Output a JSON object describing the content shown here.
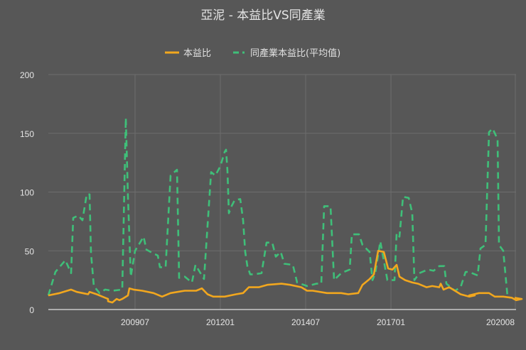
{
  "chart_data": {
    "type": "line",
    "title": "亞泥 - 本益比VS同產業",
    "xlabel": "",
    "ylabel": "",
    "ylim": [
      0,
      200
    ],
    "yticks": [
      0,
      50,
      100,
      150,
      200
    ],
    "grid": true,
    "legend_position": "top",
    "x_start_month": "200701",
    "x_tick_labels": [
      {
        "label": "200907",
        "index": 30
      },
      {
        "label": "201201",
        "index": 60
      },
      {
        "label": "201407",
        "index": 90
      },
      {
        "label": "201701",
        "index": 120
      },
      {
        "label": "202008",
        "index": 163
      }
    ],
    "x_count": 165,
    "series": [
      {
        "name": "本益比",
        "color": "#f2a71e",
        "style": "solid",
        "points": [
          [
            0,
            12
          ],
          [
            4,
            14
          ],
          [
            8,
            17
          ],
          [
            10,
            15
          ],
          [
            12,
            14
          ],
          [
            14,
            13
          ],
          [
            14.5,
            15
          ],
          [
            17,
            13
          ],
          [
            19,
            11
          ],
          [
            21,
            9
          ],
          [
            21,
            7
          ],
          [
            22.5,
            6
          ],
          [
            24,
            9
          ],
          [
            25,
            8
          ],
          [
            26,
            9
          ],
          [
            28,
            12
          ],
          [
            28.5,
            18
          ],
          [
            30,
            17
          ],
          [
            33,
            16
          ],
          [
            37,
            14
          ],
          [
            40,
            11
          ],
          [
            43,
            14
          ],
          [
            48,
            16
          ],
          [
            52,
            16
          ],
          [
            54,
            18
          ],
          [
            56,
            13
          ],
          [
            58,
            11
          ],
          [
            62,
            11
          ],
          [
            66,
            13
          ],
          [
            68.5,
            14
          ],
          [
            70.5,
            19
          ],
          [
            74,
            19
          ],
          [
            77,
            21
          ],
          [
            82,
            22
          ],
          [
            85,
            21
          ],
          [
            89,
            19
          ],
          [
            91,
            16
          ],
          [
            93,
            16
          ],
          [
            98,
            14
          ],
          [
            103,
            14
          ],
          [
            105.5,
            13
          ],
          [
            109,
            14
          ],
          [
            110.5,
            21
          ],
          [
            113,
            26
          ],
          [
            114.5,
            30
          ],
          [
            116,
            50
          ],
          [
            118,
            49
          ],
          [
            119.5,
            35
          ],
          [
            121,
            34
          ],
          [
            122.5,
            38
          ],
          [
            123.5,
            28
          ],
          [
            125.5,
            25
          ],
          [
            128,
            23
          ],
          [
            130,
            22
          ],
          [
            133,
            19
          ],
          [
            135,
            20
          ],
          [
            137.5,
            19
          ],
          [
            138,
            22
          ],
          [
            139,
            17
          ],
          [
            141,
            19
          ],
          [
            143,
            16
          ],
          [
            145,
            13
          ],
          [
            148,
            11
          ],
          [
            150,
            12
          ],
          [
            148,
            12
          ],
          [
            151.5,
            14
          ],
          [
            155,
            14
          ],
          [
            157,
            11
          ],
          [
            160,
            11
          ],
          [
            163,
            10
          ],
          [
            164.5,
            8
          ],
          [
            166.5,
            9
          ],
          [
            164,
            10
          ]
        ]
      },
      {
        "name": "同產業本益比(平均值)",
        "color": "#3fbf79",
        "style": "dashed",
        "points": [
          [
            0,
            12
          ],
          [
            2.5,
            32
          ],
          [
            6,
            42
          ],
          [
            8,
            31
          ],
          [
            8.75,
            78
          ],
          [
            10.5,
            80
          ],
          [
            12,
            76
          ],
          [
            13.5,
            98
          ],
          [
            14.5,
            98
          ],
          [
            15,
            48
          ],
          [
            16,
            20
          ],
          [
            18,
            14
          ],
          [
            20,
            17
          ],
          [
            22.5,
            16
          ],
          [
            26,
            17
          ],
          [
            27.25,
            163
          ],
          [
            28,
            96
          ],
          [
            29,
            28
          ],
          [
            30.5,
            50
          ],
          [
            33.5,
            62
          ],
          [
            34.5,
            51
          ],
          [
            36.75,
            48
          ],
          [
            38.5,
            46
          ],
          [
            39.25,
            36
          ],
          [
            41.25,
            36
          ],
          [
            43,
            114
          ],
          [
            45.25,
            119
          ],
          [
            46,
            27
          ],
          [
            48,
            28
          ],
          [
            50.5,
            23
          ],
          [
            51.75,
            38
          ],
          [
            54.75,
            26
          ],
          [
            57.25,
            117
          ],
          [
            58.75,
            114
          ],
          [
            60.5,
            122
          ],
          [
            62,
            134
          ],
          [
            62.5,
            136
          ],
          [
            63,
            118
          ],
          [
            63.5,
            82
          ],
          [
            64.25,
            87
          ],
          [
            65.5,
            93
          ],
          [
            67.5,
            94
          ],
          [
            68.5,
            76
          ],
          [
            69.25,
            49
          ],
          [
            70,
            37
          ],
          [
            71,
            30
          ],
          [
            72.5,
            30
          ],
          [
            75,
            31
          ],
          [
            76.75,
            57
          ],
          [
            78.75,
            57
          ],
          [
            80,
            45
          ],
          [
            81.75,
            49
          ],
          [
            83,
            39
          ],
          [
            86,
            38
          ],
          [
            87.5,
            23
          ],
          [
            91,
            20
          ],
          [
            94.25,
            22
          ],
          [
            96,
            22
          ],
          [
            97,
            88
          ],
          [
            99.25,
            88
          ],
          [
            100.5,
            25
          ],
          [
            103,
            31
          ],
          [
            106,
            34
          ],
          [
            106.75,
            64
          ],
          [
            109.25,
            64
          ],
          [
            110.5,
            55
          ],
          [
            113,
            49
          ],
          [
            114,
            25
          ],
          [
            115,
            31
          ],
          [
            116.75,
            58
          ],
          [
            119.25,
            25
          ],
          [
            121.75,
            25
          ],
          [
            122.5,
            65
          ],
          [
            123.5,
            62
          ],
          [
            124.75,
            96
          ],
          [
            126.75,
            95
          ],
          [
            128,
            82
          ],
          [
            128.75,
            25
          ],
          [
            130.5,
            31
          ],
          [
            133.5,
            34
          ],
          [
            135.5,
            33
          ],
          [
            137.5,
            37
          ],
          [
            139.25,
            37
          ],
          [
            140,
            22
          ],
          [
            143,
            16
          ],
          [
            145,
            19
          ],
          [
            146.75,
            32
          ],
          [
            148,
            32
          ],
          [
            151,
            29
          ],
          [
            152,
            52
          ],
          [
            153.75,
            55
          ],
          [
            155,
            151
          ],
          [
            156.25,
            154
          ],
          [
            158,
            145
          ],
          [
            158.5,
            55
          ],
          [
            160,
            50
          ],
          [
            161.5,
            11
          ],
          [
            162.5,
            10
          ]
        ]
      }
    ]
  },
  "legend": {
    "items": [
      {
        "label": "本益比"
      },
      {
        "label": "同產業本益比(平均值)"
      }
    ]
  }
}
